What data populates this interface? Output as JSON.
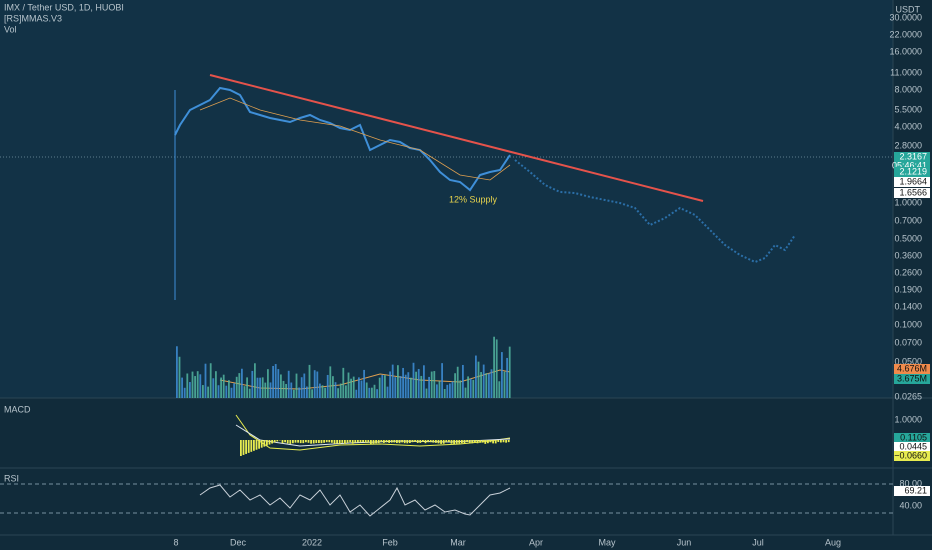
{
  "header": {
    "symbol": "IMX / Tether USD, 1D, HUOBI",
    "indicator": "[RS]MMAS.V3",
    "volume": "Vol"
  },
  "price_axis": {
    "unit": "USDT",
    "labels": [
      "30.0000",
      "22.0000",
      "16.0000",
      "11.0000",
      "8.0000",
      "5.5000",
      "4.0000",
      "2.8000",
      "1.0000",
      "0.7000",
      "0.5000",
      "0.3600",
      "0.2600",
      "0.1900",
      "0.1400",
      "0.1000",
      "0.0700",
      "0.0500",
      "0.0265"
    ]
  },
  "price_badges": [
    "2.3167",
    "05:46:41",
    "2.1219",
    "1.9664",
    "1.6566"
  ],
  "volume_badges": [
    "4.676M",
    "3.675M"
  ],
  "annotation": "12% Supply",
  "macd": {
    "title": "MACD",
    "labels": [
      "1.0000"
    ],
    "badges": [
      "0.1105",
      "0.0445",
      "−0.0660"
    ]
  },
  "rsi": {
    "title": "RSI",
    "labels": [
      "80.00",
      "40.00"
    ],
    "badge": "69.21"
  },
  "time_axis": [
    "8",
    "Dec",
    "2022",
    "Feb",
    "Mar",
    "Apr",
    "May",
    "Jun",
    "Jul",
    "Aug"
  ]
}
